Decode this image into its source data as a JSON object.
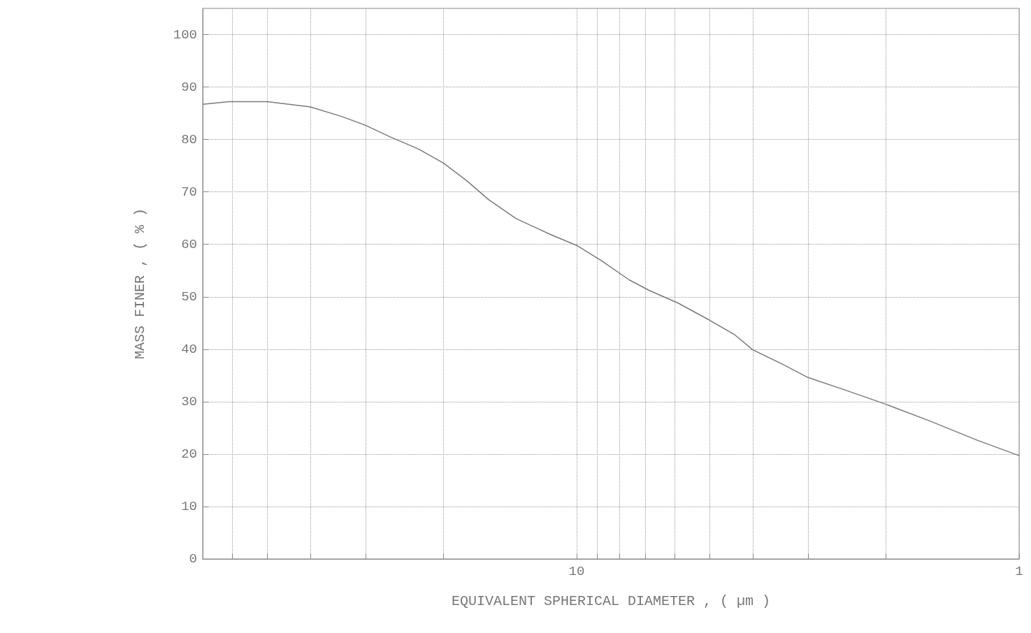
{
  "chart_data": {
    "type": "line",
    "xlabel": "EQUIVALENT SPHERICAL DIAMETER , ( µm )",
    "ylabel": "MASS FINER , ( % )",
    "log": "x",
    "xlim": [
      70,
      1
    ],
    "ylim": [
      0,
      105
    ],
    "xticks": [
      {
        "value": 70,
        "label": null
      },
      {
        "value": 60,
        "label": null
      },
      {
        "value": 50,
        "label": null
      },
      {
        "value": 40,
        "label": null
      },
      {
        "value": 30,
        "label": null
      },
      {
        "value": 20,
        "label": null
      },
      10,
      {
        "value": 9,
        "label": null
      },
      {
        "value": 8,
        "label": null
      },
      {
        "value": 7,
        "label": null
      },
      {
        "value": 6,
        "label": null
      },
      {
        "value": 5,
        "label": null
      },
      {
        "value": 4,
        "label": null
      },
      {
        "value": 3,
        "label": null
      },
      {
        "value": 2,
        "label": null
      },
      1
    ],
    "yticks": [
      0,
      10,
      20,
      30,
      40,
      50,
      60,
      70,
      80,
      90,
      100
    ],
    "grid": true,
    "marker": "none",
    "line_style": "solid",
    "series": [
      {
        "color": "#7a7a7a",
        "x": [
          70,
          61,
          50,
          40,
          34,
          30,
          26.4,
          22.8,
          20,
          17.7,
          15.8,
          13.7,
          11.4,
          10,
          8.8,
          7.6,
          6.85,
          5.9,
          5,
          4.4,
          4,
          3.4,
          3,
          2.47,
          2,
          1.59,
          1.24,
          1
        ],
        "values": [
          86.7,
          87.2,
          87.2,
          86.2,
          84.4,
          82.7,
          80.5,
          78.2,
          75.5,
          72.1,
          68.5,
          64.9,
          61.8,
          59.8,
          56.9,
          53.2,
          51.2,
          48.8,
          45.5,
          42.8,
          39.9,
          37.0,
          34.6,
          32.2,
          29.5,
          26.3,
          22.6,
          19.7
        ]
      }
    ]
  }
}
